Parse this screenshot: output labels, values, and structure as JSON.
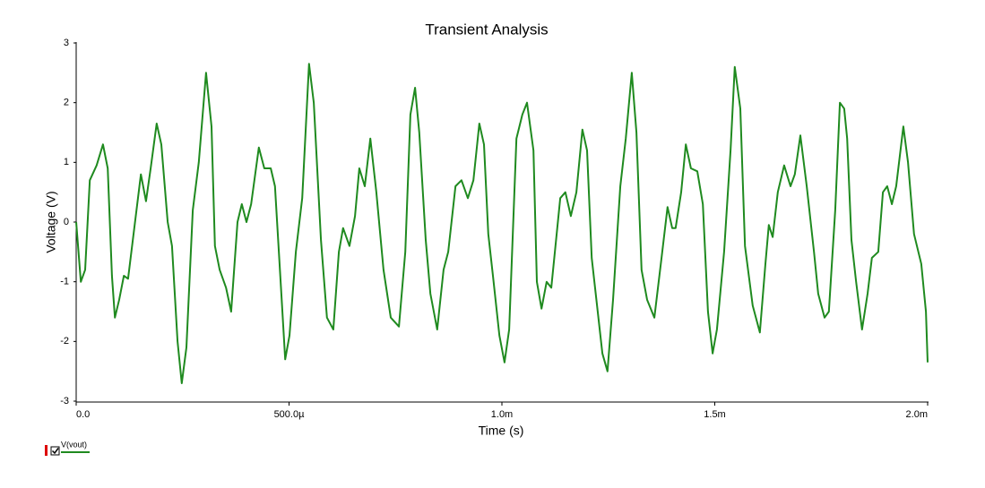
{
  "chart_data": {
    "type": "line",
    "title": "Transient Analysis",
    "x_label": "Time (s)",
    "y_label": "Voltage (V)",
    "x": [
      0,
      1.1e-05,
      2.1e-05,
      3.2e-05,
      4.8e-05,
      6.3e-05,
      7.4e-05,
      8.4e-05,
      9.1e-05,
      0.000101,
      0.000112,
      0.000122,
      0.000133,
      0.000152,
      0.000164,
      0.000175,
      0.000189,
      0.0002,
      0.000215,
      0.000225,
      0.000238,
      0.000248,
      0.000259,
      0.000274,
      0.000288,
      0.000305,
      0.000318,
      0.000326,
      0.000337,
      0.000352,
      0.000364,
      0.000379,
      0.000389,
      0.0004,
      0.000411,
      0.000429,
      0.000442,
      0.000457,
      0.000467,
      0.000482,
      0.000491,
      0.000501,
      0.000516,
      0.000531,
      0.000547,
      0.000558,
      0.000575,
      0.000589,
      0.000604,
      0.000617,
      0.000627,
      0.000642,
      0.000655,
      0.000665,
      0.000678,
      0.000691,
      0.000705,
      0.000722,
      0.000739,
      0.000758,
      0.000773,
      0.000785,
      0.000796,
      0.000806,
      0.000821,
      0.000832,
      0.000848,
      0.000863,
      0.000874,
      0.000891,
      0.000905,
      0.00092,
      0.000933,
      0.000947,
      0.000958,
      0.000968,
      0.000979,
      0.000994,
      0.001006,
      0.001017,
      0.001034,
      0.001048,
      0.001059,
      0.001074,
      0.001082,
      0.001093,
      0.001105,
      0.001116,
      0.001137,
      0.001149,
      0.001162,
      0.001175,
      0.001189,
      0.0012,
      0.001211,
      0.001225,
      0.001236,
      0.001248,
      0.001261,
      0.001278,
      0.001291,
      0.001305,
      0.001316,
      0.001328,
      0.001341,
      0.001358,
      0.001375,
      0.001389,
      0.0014,
      0.001408,
      0.001421,
      0.001432,
      0.001444,
      0.001459,
      0.001472,
      0.001484,
      0.001495,
      0.001505,
      0.001522,
      0.001537,
      0.001547,
      0.00156,
      0.001571,
      0.001589,
      0.001606,
      0.001619,
      0.001627,
      0.001636,
      0.001648,
      0.001663,
      0.001678,
      0.001688,
      0.001701,
      0.001716,
      0.001733,
      0.001743,
      0.001758,
      0.001768,
      0.001783,
      0.001794,
      0.001804,
      0.001811,
      0.001821,
      0.001832,
      0.001846,
      0.001859,
      0.001869,
      0.001884,
      0.001895,
      0.001905,
      0.001916,
      0.001926,
      0.001943,
      0.001954,
      0.001968,
      0.001985,
      0.001996,
      0.002
    ],
    "series": [
      {
        "name": "V(vout)",
        "color": "#1f8a1f",
        "values": [
          0,
          -1.0,
          -0.8,
          0.7,
          0.95,
          1.3,
          0.9,
          -0.9,
          -1.6,
          -1.3,
          -0.9,
          -0.95,
          -0.3,
          0.8,
          0.35,
          0.9,
          1.65,
          1.3,
          0.0,
          -0.4,
          -2.0,
          -2.7,
          -2.1,
          0.2,
          1.0,
          2.5,
          1.6,
          -0.4,
          -0.8,
          -1.1,
          -1.5,
          0.0,
          0.3,
          0.0,
          0.3,
          1.25,
          0.9,
          0.9,
          0.6,
          -1.2,
          -2.3,
          -1.9,
          -0.5,
          0.4,
          2.65,
          2.0,
          -0.3,
          -1.6,
          -1.8,
          -0.5,
          -0.1,
          -0.4,
          0.1,
          0.9,
          0.6,
          1.4,
          0.5,
          -0.8,
          -1.6,
          -1.75,
          -0.5,
          1.8,
          2.25,
          1.5,
          -0.3,
          -1.2,
          -1.8,
          -0.8,
          -0.5,
          0.6,
          0.7,
          0.4,
          0.7,
          1.65,
          1.3,
          -0.2,
          -0.9,
          -1.9,
          -2.35,
          -1.8,
          1.4,
          1.8,
          2.0,
          1.2,
          -1.0,
          -1.45,
          -1.0,
          -1.1,
          0.4,
          0.5,
          0.1,
          0.5,
          1.55,
          1.2,
          -0.6,
          -1.5,
          -2.2,
          -2.5,
          -1.3,
          0.6,
          1.4,
          2.5,
          1.5,
          -0.8,
          -1.3,
          -1.6,
          -0.6,
          0.25,
          -0.1,
          -0.1,
          0.5,
          1.3,
          0.9,
          0.85,
          0.3,
          -1.5,
          -2.2,
          -1.8,
          -0.5,
          1.2,
          2.6,
          1.9,
          -0.4,
          -1.4,
          -1.85,
          -0.7,
          -0.05,
          -0.25,
          0.5,
          0.95,
          0.6,
          0.8,
          1.45,
          0.6,
          -0.5,
          -1.2,
          -1.6,
          -1.5,
          0.2,
          2.0,
          1.9,
          1.4,
          -0.3,
          -1.0,
          -1.8,
          -1.2,
          -0.6,
          -0.5,
          0.5,
          0.6,
          0.3,
          0.6,
          1.6,
          1.0,
          -0.2,
          -0.7,
          -1.5,
          -2.35
        ]
      }
    ],
    "xlim": [
      0,
      0.002
    ],
    "ylim": [
      -3,
      3
    ],
    "xticks": [
      {
        "value": 0,
        "label": "0.0"
      },
      {
        "value": 0.0005,
        "label": "500.0µ"
      },
      {
        "value": 0.001,
        "label": "1.0m"
      },
      {
        "value": 0.0015,
        "label": "1.5m"
      },
      {
        "value": 0.002,
        "label": "2.0m"
      }
    ],
    "yticks": [
      3,
      2,
      1,
      0,
      -1,
      -2,
      -3
    ]
  }
}
